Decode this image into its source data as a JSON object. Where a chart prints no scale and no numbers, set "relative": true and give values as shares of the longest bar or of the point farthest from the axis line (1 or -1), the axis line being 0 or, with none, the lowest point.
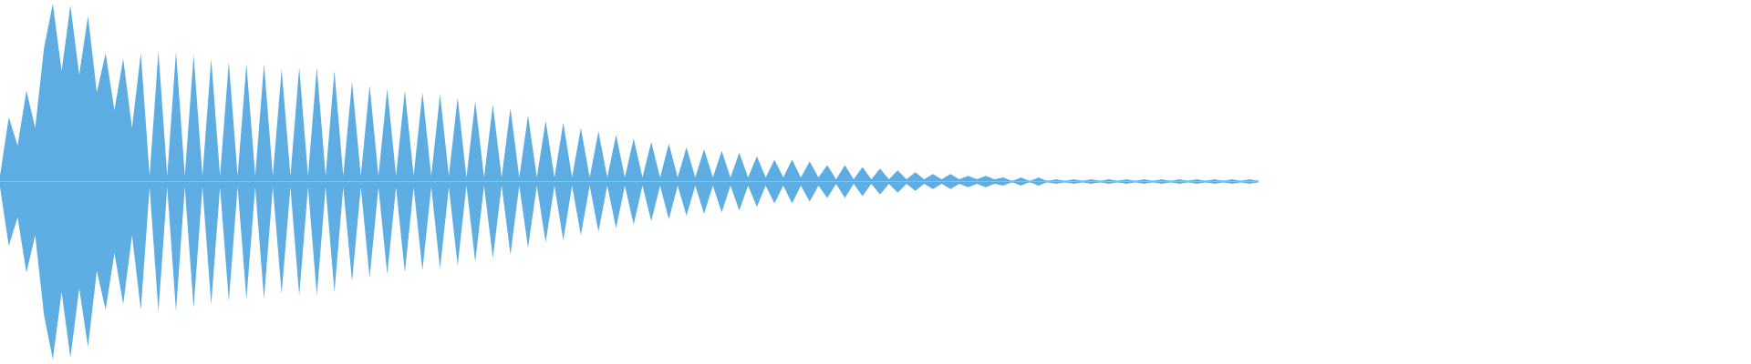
{
  "chart_data": {
    "type": "area",
    "relative": true,
    "categories": [
      null,
      null,
      null,
      null,
      null,
      null,
      null,
      null,
      null,
      null,
      null,
      null,
      null,
      null,
      null,
      null,
      null,
      null,
      null,
      null,
      null,
      null,
      null,
      null,
      null,
      null,
      null,
      null,
      null,
      null,
      null,
      null,
      null,
      null,
      null,
      null,
      null,
      null,
      null,
      null,
      null,
      null,
      null,
      null,
      null,
      null,
      null,
      null,
      null,
      null,
      null,
      null,
      null,
      null,
      null,
      null,
      null,
      null,
      null,
      null,
      null,
      null,
      null,
      null,
      null,
      null,
      null,
      null,
      null,
      null,
      null,
      null,
      null,
      null,
      null,
      null,
      null,
      null,
      null,
      null,
      null,
      null,
      null,
      null,
      null,
      null,
      null,
      null,
      null,
      null,
      null,
      null,
      null,
      null,
      null,
      null,
      null,
      null,
      null,
      null,
      null,
      null,
      null,
      null,
      null,
      null,
      null,
      null,
      null,
      null,
      null,
      null,
      null,
      null,
      null,
      null,
      null,
      null,
      null,
      null,
      null,
      null,
      null,
      null,
      null,
      null,
      null,
      null,
      null,
      null,
      null,
      null,
      null,
      null,
      null,
      null,
      null,
      null,
      null,
      null,
      null,
      null,
      null,
      null
    ],
    "series": [
      {
        "color": "#5dade2",
        "values": [
          0.03,
          0.36,
          0.2,
          0.51,
          0.3,
          0.75,
          1.0,
          0.62,
          0.99,
          0.6,
          0.93,
          0.5,
          0.72,
          0.4,
          0.69,
          0.3,
          0.72,
          0.03,
          0.73,
          0.03,
          0.73,
          0.03,
          0.71,
          0.03,
          0.69,
          0.03,
          0.67,
          0.03,
          0.66,
          0.03,
          0.66,
          0.03,
          0.63,
          0.03,
          0.64,
          0.03,
          0.64,
          0.03,
          0.62,
          0.03,
          0.56,
          0.03,
          0.54,
          0.03,
          0.52,
          0.03,
          0.51,
          0.03,
          0.5,
          0.03,
          0.49,
          0.03,
          0.47,
          0.02,
          0.45,
          0.02,
          0.43,
          0.02,
          0.41,
          0.02,
          0.37,
          0.02,
          0.34,
          0.02,
          0.33,
          0.02,
          0.3,
          0.02,
          0.28,
          0.02,
          0.26,
          0.02,
          0.24,
          0.02,
          0.22,
          0.02,
          0.21,
          0.02,
          0.19,
          0.02,
          0.18,
          0.02,
          0.17,
          0.02,
          0.16,
          0.02,
          0.14,
          0.02,
          0.12,
          0.02,
          0.12,
          0.02,
          0.11,
          0.02,
          0.09,
          0.01,
          0.09,
          0.01,
          0.08,
          0.01,
          0.07,
          0.01,
          0.06,
          0.01,
          0.05,
          0.01,
          0.04,
          0.01,
          0.04,
          0.01,
          0.03,
          0.01,
          0.03,
          0.01,
          0.02,
          0,
          0.02,
          0,
          0.02,
          0,
          0.01,
          0,
          0.01,
          0,
          0.01,
          0,
          0.01,
          0,
          0.01,
          0,
          0.01,
          0,
          0.01,
          0,
          0.01,
          0,
          0.01,
          0,
          0.01,
          0,
          0.01,
          0,
          0.01,
          0
        ]
      },
      {
        "color": "#5eaee3",
        "values": [
          -0.03,
          -0.36,
          -0.2,
          -0.51,
          -0.3,
          -0.75,
          -1.0,
          -0.62,
          -0.99,
          -0.6,
          -0.93,
          -0.5,
          -0.72,
          -0.4,
          -0.69,
          -0.3,
          -0.72,
          -0.03,
          -0.73,
          -0.03,
          -0.73,
          -0.03,
          -0.71,
          -0.03,
          -0.69,
          -0.03,
          -0.67,
          -0.03,
          -0.66,
          -0.03,
          -0.66,
          -0.03,
          -0.63,
          -0.03,
          -0.64,
          -0.03,
          -0.64,
          -0.03,
          -0.62,
          -0.03,
          -0.56,
          -0.03,
          -0.54,
          -0.03,
          -0.52,
          -0.03,
          -0.51,
          -0.03,
          -0.5,
          -0.03,
          -0.49,
          -0.03,
          -0.47,
          -0.02,
          -0.45,
          -0.02,
          -0.43,
          -0.02,
          -0.41,
          -0.02,
          -0.37,
          -0.02,
          -0.34,
          -0.02,
          -0.33,
          -0.02,
          -0.3,
          -0.02,
          -0.28,
          -0.02,
          -0.26,
          -0.02,
          -0.24,
          -0.02,
          -0.22,
          -0.02,
          -0.21,
          -0.02,
          -0.19,
          -0.02,
          -0.18,
          -0.02,
          -0.17,
          -0.02,
          -0.16,
          -0.02,
          -0.14,
          -0.02,
          -0.12,
          -0.02,
          -0.12,
          -0.02,
          -0.11,
          -0.02,
          -0.09,
          -0.01,
          -0.09,
          -0.01,
          -0.08,
          -0.01,
          -0.07,
          -0.01,
          -0.06,
          -0.01,
          -0.05,
          -0.01,
          -0.04,
          -0.01,
          -0.04,
          -0.01,
          -0.03,
          -0.01,
          -0.03,
          -0.01,
          -0.02,
          0,
          -0.02,
          0,
          -0.02,
          0,
          -0.01,
          0,
          -0.01,
          0,
          -0.01,
          0,
          -0.01,
          0,
          -0.01,
          0,
          -0.01,
          0,
          -0.01,
          0,
          -0.01,
          0,
          -0.01,
          0,
          -0.01,
          0,
          -0.01,
          0,
          -0.01,
          0
        ]
      }
    ]
  }
}
